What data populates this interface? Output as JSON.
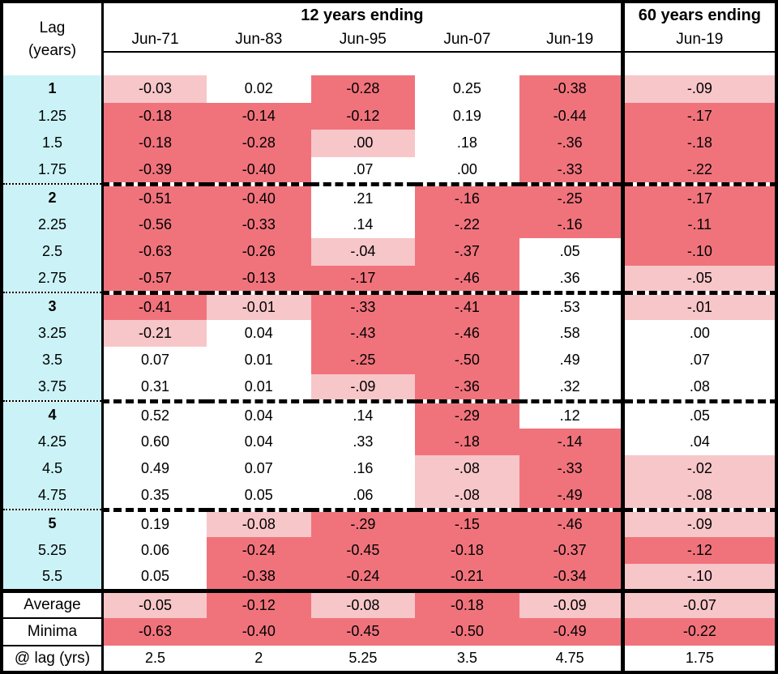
{
  "chart_data": {
    "type": "table",
    "corner_line1": "Lag",
    "corner_line2": "(years)",
    "group_12y": "12 years ending",
    "group_60y": "60 years ending",
    "columns": [
      "Jun-71",
      "Jun-83",
      "Jun-95",
      "Jun-07",
      "Jun-19"
    ],
    "column_60y": "Jun-19",
    "colors": {
      "red": "#F0737C",
      "pink": "#F7C6C9",
      "cyan": "#CBF3F7",
      "white": "#FFFFFF"
    },
    "color_codes_legend": "w=white, p=pink, r=red cell backgrounds as rendered",
    "rows": [
      {
        "lag": "1",
        "bold": true,
        "section_break": false,
        "values": [
          "-0.03",
          "0.02",
          "-0.28",
          "0.25",
          "-0.38",
          "-.09"
        ],
        "colors": [
          "p",
          "w",
          "r",
          "w",
          "r",
          "p"
        ]
      },
      {
        "lag": "1.25",
        "bold": false,
        "section_break": false,
        "values": [
          "-0.18",
          "-0.14",
          "-0.12",
          "0.19",
          "-0.44",
          "-.17"
        ],
        "colors": [
          "r",
          "r",
          "r",
          "w",
          "r",
          "r"
        ]
      },
      {
        "lag": "1.5",
        "bold": false,
        "section_break": false,
        "values": [
          "-0.18",
          "-0.28",
          ".00",
          ".18",
          "-.36",
          "-.18"
        ],
        "colors": [
          "r",
          "r",
          "p",
          "w",
          "r",
          "r"
        ]
      },
      {
        "lag": "1.75",
        "bold": false,
        "section_break": false,
        "values": [
          "-0.39",
          "-0.40",
          ".07",
          ".00",
          "-.33",
          "-.22"
        ],
        "colors": [
          "r",
          "r",
          "w",
          "w",
          "r",
          "r"
        ]
      },
      {
        "lag": "2",
        "bold": true,
        "section_break": true,
        "values": [
          "-0.51",
          "-0.40",
          ".21",
          "-.16",
          "-.25",
          "-.17"
        ],
        "colors": [
          "r",
          "r",
          "w",
          "r",
          "r",
          "r"
        ]
      },
      {
        "lag": "2.25",
        "bold": false,
        "section_break": false,
        "values": [
          "-0.56",
          "-0.33",
          ".14",
          "-.22",
          "-.16",
          "-.11"
        ],
        "colors": [
          "r",
          "r",
          "w",
          "r",
          "r",
          "r"
        ]
      },
      {
        "lag": "2.5",
        "bold": false,
        "section_break": false,
        "values": [
          "-0.63",
          "-0.26",
          "-.04",
          "-.37",
          ".05",
          "-.10"
        ],
        "colors": [
          "r",
          "r",
          "p",
          "r",
          "w",
          "r"
        ]
      },
      {
        "lag": "2.75",
        "bold": false,
        "section_break": false,
        "values": [
          "-0.57",
          "-0.13",
          "-.17",
          "-.46",
          ".36",
          "-.05"
        ],
        "colors": [
          "r",
          "r",
          "r",
          "r",
          "w",
          "p"
        ]
      },
      {
        "lag": "3",
        "bold": true,
        "section_break": true,
        "values": [
          "-0.41",
          "-0.01",
          "-.33",
          "-.41",
          ".53",
          "-.01"
        ],
        "colors": [
          "r",
          "p",
          "r",
          "r",
          "w",
          "p"
        ]
      },
      {
        "lag": "3.25",
        "bold": false,
        "section_break": false,
        "values": [
          "-0.21",
          "0.04",
          "-.43",
          "-.46",
          ".58",
          ".00"
        ],
        "colors": [
          "p",
          "w",
          "r",
          "r",
          "w",
          "w"
        ]
      },
      {
        "lag": "3.5",
        "bold": false,
        "section_break": false,
        "values": [
          "0.07",
          "0.01",
          "-.25",
          "-.50",
          ".49",
          ".07"
        ],
        "colors": [
          "w",
          "w",
          "r",
          "r",
          "w",
          "w"
        ]
      },
      {
        "lag": "3.75",
        "bold": false,
        "section_break": false,
        "values": [
          "0.31",
          "0.01",
          "-.09",
          "-.36",
          ".32",
          ".08"
        ],
        "colors": [
          "w",
          "w",
          "p",
          "r",
          "w",
          "w"
        ]
      },
      {
        "lag": "4",
        "bold": true,
        "section_break": true,
        "values": [
          "0.52",
          "0.04",
          ".14",
          "-.29",
          ".12",
          ".05"
        ],
        "colors": [
          "w",
          "w",
          "w",
          "r",
          "w",
          "w"
        ]
      },
      {
        "lag": "4.25",
        "bold": false,
        "section_break": false,
        "values": [
          "0.60",
          "0.04",
          ".33",
          "-.18",
          "-.14",
          ".04"
        ],
        "colors": [
          "w",
          "w",
          "w",
          "r",
          "r",
          "w"
        ]
      },
      {
        "lag": "4.5",
        "bold": false,
        "section_break": false,
        "values": [
          "0.49",
          "0.07",
          ".16",
          "-.08",
          "-.33",
          "-.02"
        ],
        "colors": [
          "w",
          "w",
          "w",
          "p",
          "r",
          "p"
        ]
      },
      {
        "lag": "4.75",
        "bold": false,
        "section_break": false,
        "values": [
          "0.35",
          "0.05",
          ".06",
          "-.08",
          "-.49",
          "-.08"
        ],
        "colors": [
          "w",
          "w",
          "w",
          "p",
          "r",
          "p"
        ]
      },
      {
        "lag": "5",
        "bold": true,
        "section_break": true,
        "values": [
          "0.19",
          "-0.08",
          "-.29",
          "-.15",
          "-.46",
          "-.09"
        ],
        "colors": [
          "w",
          "p",
          "r",
          "r",
          "r",
          "p"
        ]
      },
      {
        "lag": "5.25",
        "bold": false,
        "section_break": false,
        "values": [
          "0.06",
          "-0.24",
          "-0.45",
          "-0.18",
          "-0.37",
          "-.12"
        ],
        "colors": [
          "w",
          "r",
          "r",
          "r",
          "r",
          "r"
        ]
      },
      {
        "lag": "5.5",
        "bold": false,
        "section_break": false,
        "values": [
          "0.05",
          "-0.38",
          "-0.24",
          "-0.21",
          "-0.34",
          "-.10"
        ],
        "colors": [
          "w",
          "r",
          "r",
          "r",
          "r",
          "p"
        ]
      }
    ],
    "summary_rows": [
      {
        "label": "Average",
        "values": [
          "-0.05",
          "-0.12",
          "-0.08",
          "-0.18",
          "-0.09",
          "-0.07"
        ],
        "colors": [
          "p",
          "r",
          "p",
          "r",
          "p",
          "p"
        ]
      },
      {
        "label": "Minima",
        "values": [
          "-0.63",
          "-0.40",
          "-0.45",
          "-0.50",
          "-0.49",
          "-0.22"
        ],
        "colors": [
          "r",
          "r",
          "r",
          "r",
          "r",
          "r"
        ]
      },
      {
        "label": "@ lag (yrs)",
        "values": [
          "2.5",
          "2",
          "5.25",
          "3.5",
          "4.75",
          "1.75"
        ],
        "colors": [
          "w",
          "w",
          "w",
          "w",
          "w",
          "w"
        ]
      }
    ]
  }
}
